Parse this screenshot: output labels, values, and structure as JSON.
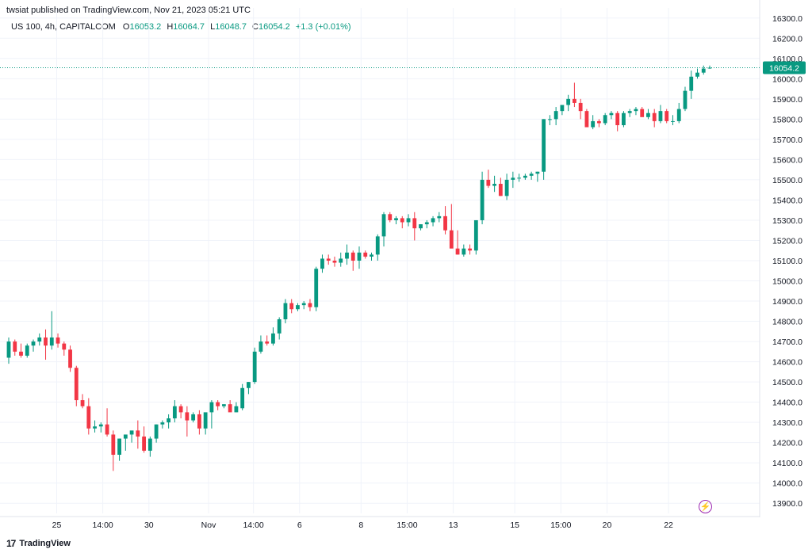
{
  "header": {
    "published": "twsiat published on TradingView.com, Nov 21, 2023 05:21 UTC"
  },
  "legend": {
    "symbol": "US 100, 4h, CAPITALCOM",
    "o_label": "O",
    "o": "16053.2",
    "h_label": "H",
    "h": "16064.7",
    "l_label": "L",
    "l": "16048.7",
    "c_label": "C",
    "c": "16054.2",
    "change": "+1.3 (+0.01%)"
  },
  "footer": {
    "brand": "TradingView",
    "logo": "17"
  },
  "colors": {
    "up": "#089981",
    "down": "#f23645",
    "grid": "#f0f3fa",
    "price_tag": "#089981"
  },
  "icons": {
    "bolt": "lightning-icon"
  },
  "chart_data": {
    "type": "candlestick",
    "title": "",
    "ylim": [
      13850,
      16350
    ],
    "y_ticks": [
      "16300.0",
      "16200.0",
      "16100.0",
      "16000.0",
      "15900.0",
      "15800.0",
      "15700.0",
      "15600.0",
      "15500.0",
      "15400.0",
      "15300.0",
      "15200.0",
      "15100.0",
      "15000.0",
      "14900.0",
      "14800.0",
      "14700.0",
      "14600.0",
      "14500.0",
      "14400.0",
      "14300.0",
      "14200.0",
      "14100.0",
      "14000.0",
      "13900.0"
    ],
    "x_ticks": [
      {
        "label": "25",
        "index": 7.8
      },
      {
        "label": "14:00",
        "index": 15.3
      },
      {
        "label": "30",
        "index": 22.8
      },
      {
        "label": "Nov",
        "index": 32.5
      },
      {
        "label": "14:00",
        "index": 39.8
      },
      {
        "label": "6",
        "index": 47.3
      },
      {
        "label": "8",
        "index": 57.3
      },
      {
        "label": "15:00",
        "index": 64.8
      },
      {
        "label": "13",
        "index": 72.3
      },
      {
        "label": "15",
        "index": 82.3
      },
      {
        "label": "15:00",
        "index": 89.8
      },
      {
        "label": "20",
        "index": 97.3
      },
      {
        "label": "22",
        "index": 107.3
      }
    ],
    "last_price": 16054.2,
    "last_price_label": "16054.2",
    "grid": true,
    "candles": [
      [
        14620,
        14720,
        14590,
        14700
      ],
      [
        14700,
        14710,
        14630,
        14650
      ],
      [
        14650,
        14690,
        14620,
        14630
      ],
      [
        14630,
        14690,
        14620,
        14680
      ],
      [
        14680,
        14710,
        14650,
        14700
      ],
      [
        14700,
        14740,
        14680,
        14720
      ],
      [
        14720,
        14760,
        14610,
        14680
      ],
      [
        14680,
        14850,
        14660,
        14720
      ],
      [
        14720,
        14740,
        14670,
        14690
      ],
      [
        14690,
        14700,
        14630,
        14660
      ],
      [
        14660,
        14680,
        14550,
        14570
      ],
      [
        14570,
        14580,
        14380,
        14410
      ],
      [
        14410,
        14440,
        14370,
        14380
      ],
      [
        14380,
        14420,
        14240,
        14270
      ],
      [
        14270,
        14310,
        14250,
        14280
      ],
      [
        14280,
        14300,
        14250,
        14290
      ],
      [
        14290,
        14370,
        14230,
        14240
      ],
      [
        14240,
        14260,
        14060,
        14140
      ],
      [
        14140,
        14220,
        14110,
        14220
      ],
      [
        14220,
        14240,
        14160,
        14240
      ],
      [
        14240,
        14250,
        14200,
        14260
      ],
      [
        14260,
        14310,
        14170,
        14230
      ],
      [
        14230,
        14280,
        14150,
        14160
      ],
      [
        14160,
        14230,
        14130,
        14220
      ],
      [
        14220,
        14290,
        14200,
        14290
      ],
      [
        14290,
        14310,
        14270,
        14300
      ],
      [
        14300,
        14340,
        14270,
        14320
      ],
      [
        14320,
        14410,
        14300,
        14380
      ],
      [
        14380,
        14390,
        14320,
        14350
      ],
      [
        14350,
        14380,
        14230,
        14310
      ],
      [
        14310,
        14350,
        14300,
        14340
      ],
      [
        14340,
        14360,
        14240,
        14270
      ],
      [
        14270,
        14340,
        14240,
        14350
      ],
      [
        14350,
        14410,
        14270,
        14400
      ],
      [
        14400,
        14410,
        14360,
        14380
      ],
      [
        14380,
        14390,
        14370,
        14390
      ],
      [
        14390,
        14410,
        14360,
        14350
      ],
      [
        14350,
        14400,
        14350,
        14380
      ],
      [
        14370,
        14490,
        14360,
        14470
      ],
      [
        14470,
        14500,
        14440,
        14500
      ],
      [
        14500,
        14670,
        14490,
        14650
      ],
      [
        14650,
        14730,
        14640,
        14700
      ],
      [
        14700,
        14730,
        14680,
        14690
      ],
      [
        14690,
        14770,
        14680,
        14740
      ],
      [
        14740,
        14820,
        14710,
        14810
      ],
      [
        14810,
        14910,
        14790,
        14890
      ],
      [
        14890,
        14910,
        14840,
        14860
      ],
      [
        14860,
        14890,
        14850,
        14880
      ],
      [
        14880,
        14900,
        14860,
        14890
      ],
      [
        14890,
        14910,
        14850,
        14870
      ],
      [
        14870,
        15070,
        14850,
        15060
      ],
      [
        15060,
        15130,
        15040,
        15110
      ],
      [
        15110,
        15130,
        15080,
        15100
      ],
      [
        15100,
        15120,
        15070,
        15090
      ],
      [
        15090,
        15140,
        15070,
        15110
      ],
      [
        15110,
        15180,
        15080,
        15140
      ],
      [
        15140,
        15150,
        15050,
        15100
      ],
      [
        15100,
        15170,
        15060,
        15140
      ],
      [
        15140,
        15150,
        15110,
        15120
      ],
      [
        15120,
        15140,
        15100,
        15130
      ],
      [
        15130,
        15230,
        15100,
        15220
      ],
      [
        15220,
        15340,
        15170,
        15330
      ],
      [
        15330,
        15340,
        15290,
        15300
      ],
      [
        15300,
        15320,
        15280,
        15310
      ],
      [
        15310,
        15320,
        15260,
        15290
      ],
      [
        15290,
        15330,
        15270,
        15310
      ],
      [
        15310,
        15340,
        15200,
        15260
      ],
      [
        15260,
        15280,
        15250,
        15280
      ],
      [
        15280,
        15300,
        15260,
        15290
      ],
      [
        15290,
        15320,
        15270,
        15310
      ],
      [
        15310,
        15340,
        15290,
        15320
      ],
      [
        15320,
        15370,
        15230,
        15250
      ],
      [
        15250,
        15380,
        15170,
        15160
      ],
      [
        15160,
        15250,
        15130,
        15130
      ],
      [
        15130,
        15180,
        15120,
        15160
      ],
      [
        15160,
        15180,
        15130,
        15150
      ],
      [
        15150,
        15300,
        15130,
        15300
      ],
      [
        15300,
        15540,
        15280,
        15500
      ],
      [
        15500,
        15550,
        15460,
        15470
      ],
      [
        15470,
        15520,
        15440,
        15480
      ],
      [
        15480,
        15510,
        15420,
        15420
      ],
      [
        15420,
        15530,
        15400,
        15500
      ],
      [
        15500,
        15540,
        15460,
        15510
      ],
      [
        15510,
        15530,
        15490,
        15510
      ],
      [
        15510,
        15530,
        15500,
        15520
      ],
      [
        15520,
        15540,
        15500,
        15530
      ],
      [
        15530,
        15540,
        15490,
        15540
      ],
      [
        15540,
        15800,
        15500,
        15800
      ],
      [
        15800,
        15820,
        15770,
        15800
      ],
      [
        15800,
        15860,
        15770,
        15840
      ],
      [
        15840,
        15870,
        15820,
        15870
      ],
      [
        15870,
        15920,
        15840,
        15900
      ],
      [
        15900,
        15980,
        15860,
        15880
      ],
      [
        15880,
        15900,
        15800,
        15840
      ],
      [
        15840,
        15850,
        15770,
        15760
      ],
      [
        15760,
        15820,
        15750,
        15790
      ],
      [
        15790,
        15800,
        15760,
        15780
      ],
      [
        15780,
        15830,
        15770,
        15820
      ],
      [
        15820,
        15840,
        15800,
        15830
      ],
      [
        15830,
        15840,
        15740,
        15770
      ],
      [
        15770,
        15840,
        15760,
        15830
      ],
      [
        15830,
        15850,
        15810,
        15840
      ],
      [
        15840,
        15860,
        15820,
        15850
      ],
      [
        15850,
        15860,
        15820,
        15810
      ],
      [
        15810,
        15850,
        15800,
        15830
      ],
      [
        15830,
        15850,
        15760,
        15790
      ],
      [
        15790,
        15870,
        15780,
        15840
      ],
      [
        15840,
        15850,
        15780,
        15790
      ],
      [
        15790,
        15820,
        15770,
        15790
      ],
      [
        15790,
        15880,
        15780,
        15850
      ],
      [
        15850,
        15960,
        15840,
        15940
      ],
      [
        15940,
        16040,
        15900,
        16010
      ],
      [
        16010,
        16050,
        16000,
        16030
      ],
      [
        16030,
        16065,
        16020,
        16050
      ],
      [
        16053.2,
        16064.7,
        16048.7,
        16054.2
      ]
    ]
  }
}
